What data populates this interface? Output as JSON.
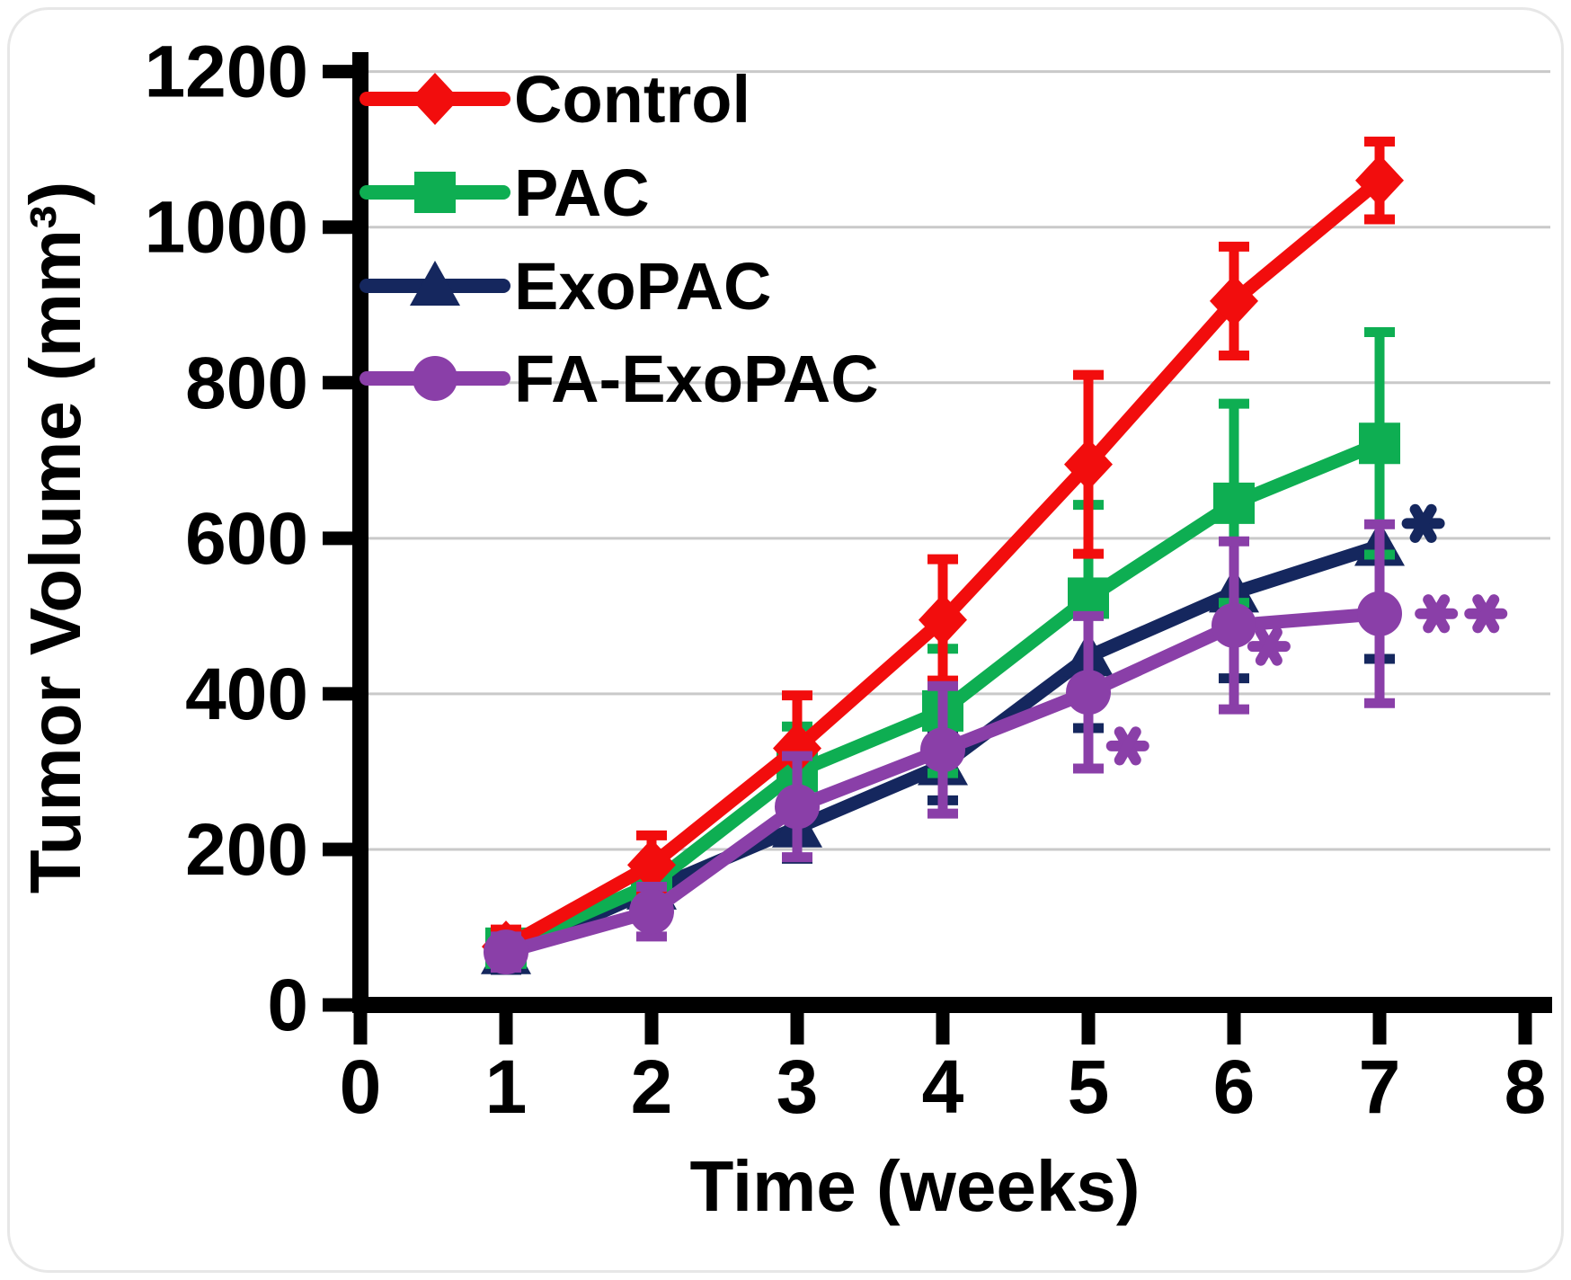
{
  "chart_data": {
    "type": "line",
    "title": "",
    "xlabel": "Time (weeks)",
    "ylabel": "Tumor Volume (mm³)",
    "x": [
      1,
      2,
      3,
      4,
      5,
      6,
      7
    ],
    "xlim": [
      0,
      8
    ],
    "ylim": [
      0,
      1200
    ],
    "x_ticks": [
      0,
      1,
      2,
      3,
      4,
      5,
      6,
      7,
      8
    ],
    "y_ticks": [
      0,
      200,
      400,
      600,
      800,
      1000,
      1200
    ],
    "grid": "horizontal-only",
    "gridline_color": "#c9c9c9",
    "axis_color": "#000000",
    "legend_position": "top-left-inside",
    "series": [
      {
        "name": "Control",
        "color": "#f20d0d",
        "marker": "diamond",
        "values": [
          75,
          180,
          330,
          495,
          695,
          905,
          1060
        ],
        "errors": [
          22,
          38,
          68,
          78,
          115,
          70,
          50
        ]
      },
      {
        "name": "PAC",
        "color": "#0eae52",
        "marker": "square",
        "values": [
          73,
          155,
          300,
          378,
          523,
          645,
          722
        ],
        "errors": [
          20,
          30,
          58,
          80,
          120,
          128,
          143
        ]
      },
      {
        "name": "ExoPAC",
        "color": "#15275e",
        "marker": "triangle",
        "values": [
          65,
          148,
          228,
          308,
          448,
          530,
          590
        ],
        "errors": [
          20,
          25,
          40,
          45,
          92,
          110,
          145
        ]
      },
      {
        "name": "FA-ExoPAC",
        "color": "#8a3fa8",
        "marker": "circle",
        "values": [
          68,
          120,
          255,
          328,
          402,
          488,
          503
        ],
        "errors": [
          20,
          32,
          65,
          82,
          98,
          108,
          115
        ]
      }
    ],
    "z_order": [
      2,
      1,
      0,
      3
    ],
    "annotations": [
      {
        "text": "*",
        "color": "#8a3fa8",
        "x": 5.27,
        "y": 333,
        "meaning": "significance FA-ExoPAC week 5"
      },
      {
        "text": "*",
        "color": "#8a3fa8",
        "x": 6.24,
        "y": 461,
        "meaning": "significance FA-ExoPAC week 6"
      },
      {
        "text": "*",
        "color": "#15275e",
        "x": 7.3,
        "y": 619,
        "meaning": "significance ExoPAC week 7"
      },
      {
        "text": "*",
        "color": "#8a3fa8",
        "x": 7.39,
        "y": 503,
        "meaning": "significance FA-ExoPAC week 7 (1 of 2)"
      },
      {
        "text": "*",
        "color": "#8a3fa8",
        "x": 7.73,
        "y": 503,
        "meaning": "significance FA-ExoPAC week 7 (2 of 2)"
      }
    ]
  }
}
